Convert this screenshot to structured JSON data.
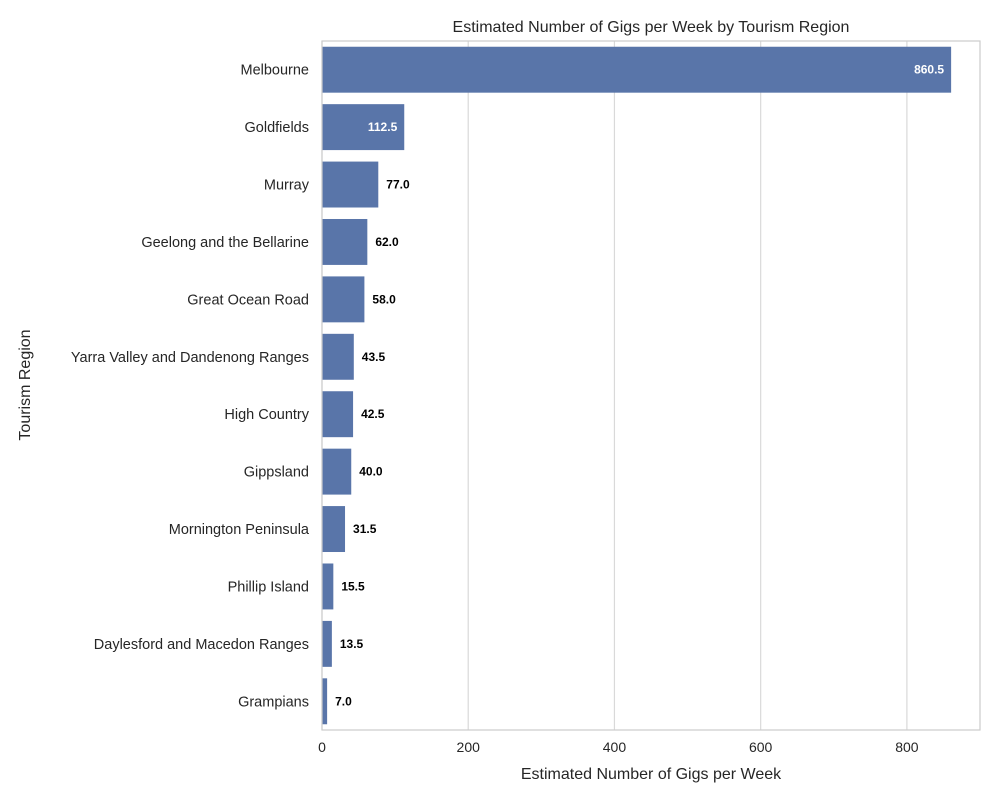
{
  "chart_data": {
    "type": "bar",
    "orientation": "horizontal",
    "title": "Estimated Number of Gigs per Week by Tourism Region",
    "xlabel": "Estimated Number of Gigs per Week",
    "ylabel": "Tourism Region",
    "xlim": [
      0,
      900
    ],
    "xticks": [
      0,
      200,
      400,
      600,
      800
    ],
    "grid": "vertical",
    "bar_color": "#5975a9",
    "categories": [
      "Melbourne",
      "Goldfields",
      "Murray",
      "Geelong and the Bellarine",
      "Great Ocean Road",
      "Yarra Valley and Dandenong Ranges",
      "High Country",
      "Gippsland",
      "Mornington Peninsula",
      "Phillip Island",
      "Daylesford and Macedon Ranges",
      "Grampians"
    ],
    "values": [
      860.5,
      112.5,
      77.0,
      62.0,
      58.0,
      43.5,
      42.5,
      40.0,
      31.5,
      15.5,
      13.5,
      7.0
    ],
    "data_labels": [
      "860.5",
      "112.5",
      "77.0",
      "62.0",
      "58.0",
      "43.5",
      "42.5",
      "40.0",
      "31.5",
      "15.5",
      "13.5",
      "7.0"
    ]
  }
}
